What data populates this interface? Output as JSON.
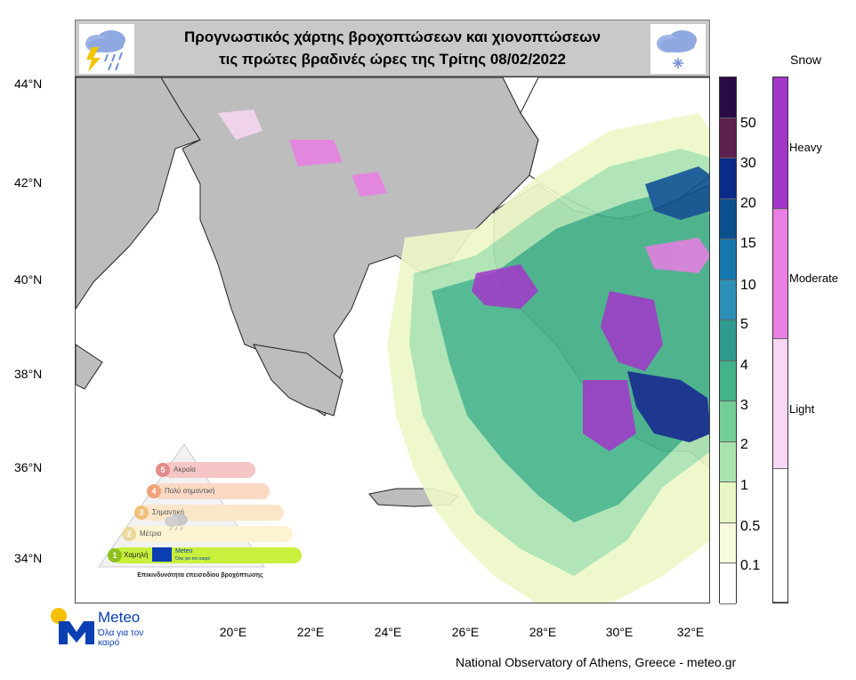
{
  "header": {
    "title_line1": "Προγνωστικός χάρτης βροχοπτώσεων και χιονοπτώσεων",
    "title_line2": "τις πρώτες βραδινές ώρες της Τρίτης 08/02/2022",
    "left_icon": "thunder-rain-cloud-icon",
    "right_icon": "snow-cloud-icon"
  },
  "axes": {
    "lat_labels": [
      "44°N",
      "42°N",
      "40°N",
      "38°N",
      "36°N",
      "34°N"
    ],
    "lon_labels": [
      "20°E",
      "22°E",
      "24°E",
      "26°E",
      "28°E",
      "30°E",
      "32°E"
    ]
  },
  "rain_legend": {
    "labels": [
      "50",
      "30",
      "20",
      "15",
      "10",
      "5",
      "4",
      "3",
      "2",
      "1",
      "0.5",
      "0.1"
    ],
    "colors": [
      "#2a0a45",
      "#5e2250",
      "#0c2a8a",
      "#0b4f8f",
      "#1577ad",
      "#2b8fb8",
      "#2e9b8e",
      "#44b38a",
      "#72cd97",
      "#a9e3b0",
      "#e7f6c2",
      "#f7fbdc",
      "#ffffff"
    ]
  },
  "snow_legend": {
    "title": "Snow",
    "labels": [
      "Heavy",
      "Moderate",
      "Light"
    ],
    "colors": [
      "#a236c9",
      "#ea7ee4",
      "#f9d7f4",
      "#ffffff"
    ]
  },
  "pyramid": {
    "levels": [
      "Ακραία",
      "Πολύ σημαντική",
      "Σημαντική",
      "Μέτρια",
      "Χαμηλή"
    ],
    "numbers": [
      "5",
      "4",
      "3",
      "2",
      "1"
    ],
    "caption": "Επικινδυνότητα επεισοδίου βροχόπτωσης",
    "logo_name": "Meteo",
    "logo_sub": "Όλα για τον καιρό"
  },
  "footer": {
    "logo_name": "Meteo",
    "logo_tagline": "Όλα για τον καιρό",
    "credit": "National Observatory of Athens, Greece - meteo.gr"
  }
}
